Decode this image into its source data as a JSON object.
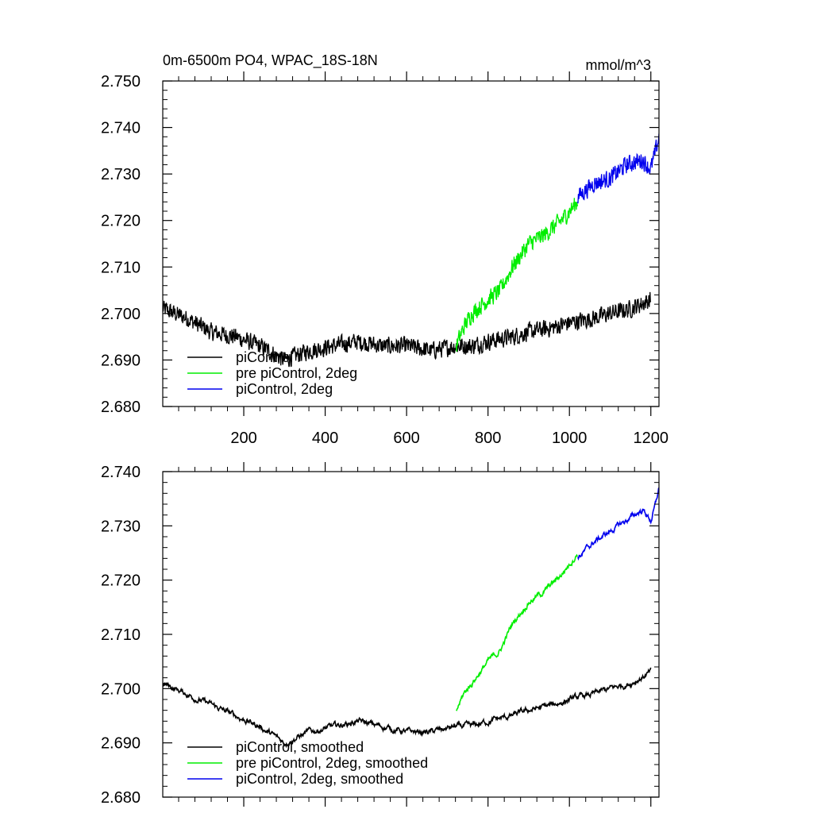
{
  "chart_data": [
    {
      "type": "line",
      "title": "0m-6500m PO4, WPAC_18S-18N",
      "units_label": "mmol/m^3",
      "xlim": [
        1,
        1220
      ],
      "ylim": [
        2.68,
        2.75
      ],
      "xticks": [
        200,
        400,
        600,
        800,
        1000,
        1200
      ],
      "yticks": [
        2.68,
        2.69,
        2.7,
        2.71,
        2.72,
        2.73,
        2.74,
        2.75
      ],
      "xtick_labels": [
        "200",
        "400",
        "600",
        "800",
        "1000",
        "1200"
      ],
      "ytick_labels": [
        "2.680",
        "2.690",
        "2.700",
        "2.710",
        "2.720",
        "2.730",
        "2.740",
        "2.750"
      ],
      "legend_position": "bottom-left",
      "series": [
        {
          "name": "piControl",
          "color": "#000000",
          "noise": 0.0022,
          "points": [
            [
              1,
              2.701
            ],
            [
              60,
              2.699
            ],
            [
              120,
              2.696
            ],
            [
              180,
              2.695
            ],
            [
              240,
              2.693
            ],
            [
              300,
              2.69
            ],
            [
              360,
              2.692
            ],
            [
              420,
              2.693
            ],
            [
              480,
              2.694
            ],
            [
              540,
              2.693
            ],
            [
              600,
              2.693
            ],
            [
              660,
              2.692
            ],
            [
              720,
              2.693
            ],
            [
              760,
              2.693
            ],
            [
              800,
              2.694
            ],
            [
              860,
              2.695
            ],
            [
              900,
              2.696
            ],
            [
              960,
              2.697
            ],
            [
              1000,
              2.698
            ],
            [
              1060,
              2.699
            ],
            [
              1100,
              2.7
            ],
            [
              1150,
              2.701
            ],
            [
              1200,
              2.703
            ]
          ]
        },
        {
          "name": "pre piControl, 2deg",
          "color": "#00ee00",
          "noise": 0.0022,
          "points": [
            [
              722,
              2.693
            ],
            [
              740,
              2.697
            ],
            [
              760,
              2.7
            ],
            [
              800,
              2.703
            ],
            [
              830,
              2.705
            ],
            [
              860,
              2.71
            ],
            [
              900,
              2.715
            ],
            [
              940,
              2.717
            ],
            [
              980,
              2.72
            ],
            [
              1020,
              2.724
            ]
          ]
        },
        {
          "name": "piControl, 2deg",
          "color": "#0000ee",
          "noise": 0.0022,
          "points": [
            [
              1020,
              2.725
            ],
            [
              1060,
              2.728
            ],
            [
              1100,
              2.729
            ],
            [
              1140,
              2.732
            ],
            [
              1180,
              2.733
            ],
            [
              1200,
              2.731
            ],
            [
              1212,
              2.735
            ],
            [
              1220,
              2.738
            ]
          ]
        }
      ]
    },
    {
      "type": "line",
      "title": "",
      "xlim": [
        1,
        1220
      ],
      "ylim": [
        2.68,
        2.74
      ],
      "xticks": [
        200,
        400,
        600,
        800,
        1000,
        1200
      ],
      "yticks": [
        2.68,
        2.69,
        2.7,
        2.71,
        2.72,
        2.73,
        2.74
      ],
      "ytick_labels": [
        "2.680",
        "2.690",
        "2.700",
        "2.710",
        "2.720",
        "2.730",
        "2.740"
      ],
      "legend_position": "bottom-left",
      "series": [
        {
          "name": "piControl, smoothed",
          "color": "#000000",
          "noise": 0.0008,
          "points": [
            [
              1,
              2.701
            ],
            [
              60,
              2.699
            ],
            [
              120,
              2.697
            ],
            [
              180,
              2.695
            ],
            [
              240,
              2.693
            ],
            [
              300,
              2.69
            ],
            [
              360,
              2.692
            ],
            [
              420,
              2.693
            ],
            [
              480,
              2.694
            ],
            [
              540,
              2.693
            ],
            [
              600,
              2.692
            ],
            [
              660,
              2.692
            ],
            [
              720,
              2.693
            ],
            [
              760,
              2.693
            ],
            [
              800,
              2.694
            ],
            [
              860,
              2.695
            ],
            [
              900,
              2.696
            ],
            [
              960,
              2.697
            ],
            [
              1000,
              2.698
            ],
            [
              1060,
              2.699
            ],
            [
              1100,
              2.7
            ],
            [
              1150,
              2.701
            ],
            [
              1200,
              2.703
            ]
          ]
        },
        {
          "name": "pre piControl, 2deg, smoothed",
          "color": "#00ee00",
          "noise": 0.0008,
          "points": [
            [
              722,
              2.696
            ],
            [
              740,
              2.699
            ],
            [
              760,
              2.701
            ],
            [
              800,
              2.705
            ],
            [
              830,
              2.707
            ],
            [
              860,
              2.712
            ],
            [
              900,
              2.716
            ],
            [
              940,
              2.718
            ],
            [
              980,
              2.721
            ],
            [
              1020,
              2.725
            ]
          ]
        },
        {
          "name": "piControl, 2deg, smoothed",
          "color": "#0000ee",
          "noise": 0.0008,
          "points": [
            [
              1020,
              2.724
            ],
            [
              1060,
              2.727
            ],
            [
              1100,
              2.729
            ],
            [
              1140,
              2.731
            ],
            [
              1180,
              2.733
            ],
            [
              1200,
              2.731
            ],
            [
              1212,
              2.734
            ],
            [
              1220,
              2.737
            ]
          ]
        }
      ]
    }
  ]
}
